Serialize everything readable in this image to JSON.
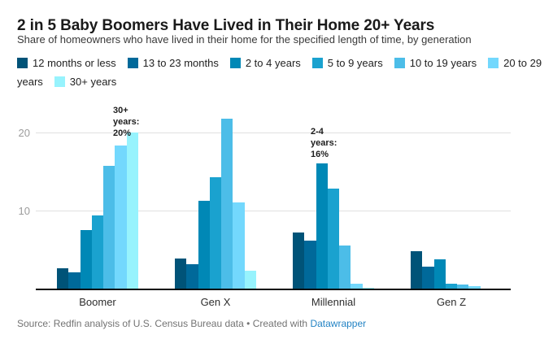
{
  "header": {
    "title": "2 in 5 Baby Boomers Have Lived in Their Home 20+ Years",
    "subtitle": "Share of homeowners who have lived in their home for the specified length of time, by generation"
  },
  "chart_data": {
    "type": "bar",
    "title": "2 in 5 Baby Boomers Have Lived in Their Home 20+ Years",
    "subtitle": "Share of homeowners who have lived in their home for the specified length of time, by generation",
    "categories": [
      "Boomer",
      "Gen X",
      "Millennial",
      "Gen Z"
    ],
    "series": [
      {
        "name": "12 months or less",
        "color": "#005378",
        "values": [
          2.7,
          3.9,
          7.2,
          4.9
        ]
      },
      {
        "name": "13 to 23 months",
        "color": "#00699a",
        "values": [
          2.2,
          3.2,
          6.2,
          2.9
        ]
      },
      {
        "name": "2 to 4 years",
        "color": "#0088b6",
        "values": [
          7.5,
          11.3,
          16,
          3.8
        ]
      },
      {
        "name": "5 to 9 years",
        "color": "#1aa2cf",
        "values": [
          9.4,
          14.3,
          12.8,
          0.7
        ]
      },
      {
        "name": "10 to 19 years",
        "color": "#4cbde8",
        "values": [
          15.7,
          21.7,
          5.6,
          0.6
        ]
      },
      {
        "name": "20 to 29 years",
        "color": "#73d8fd",
        "values": [
          18.3,
          11.1,
          0.7,
          0.4
        ]
      },
      {
        "name": "30+ years",
        "color": "#97f3fd",
        "values": [
          20,
          2.4,
          0.2,
          0.1
        ]
      }
    ],
    "ylim": [
      0,
      25
    ],
    "y_ticks": [
      10,
      20
    ],
    "grid": true,
    "legend_position": "top",
    "annotations": {
      "boomer_30plus": "30+\nyears:\n20%",
      "millennial_2to4": "2-4\nyears:\n16%"
    }
  },
  "footer": {
    "source": "Source: Redfin analysis of U.S. Census Bureau data",
    "separator": "•",
    "created_with": "Created with",
    "link_label": "Datawrapper",
    "link_color": "#2383c4"
  }
}
